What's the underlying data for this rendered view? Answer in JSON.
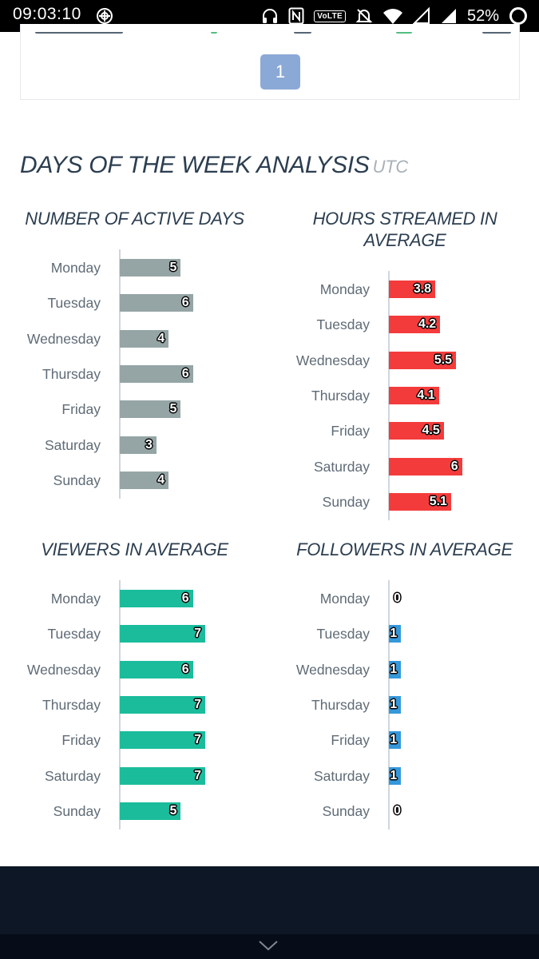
{
  "status_bar": {
    "time": "09:03:10",
    "volte": "VoLTE",
    "battery": "52%",
    "icons": [
      "compass-icon",
      "headset-icon",
      "nfc-icon",
      "volte-icon",
      "bell-off-icon",
      "wifi-icon",
      "signal-icon",
      "signal-icon",
      "battery-icon"
    ]
  },
  "pagination": {
    "current_page": "1"
  },
  "section": {
    "title": "DAYS OF THE WEEK ANALYSIS",
    "suffix": "UTC"
  },
  "colors": {
    "active_days": "#95a5a6",
    "hours": "#f43b3b",
    "viewers": "#1abc9c",
    "followers": "#3498db",
    "pagination": "#8ba9d6"
  },
  "chart_data": [
    {
      "type": "bar",
      "title": "NUMBER OF ACTIVE DAYS",
      "categories": [
        "Monday",
        "Tuesday",
        "Wednesday",
        "Thursday",
        "Friday",
        "Saturday",
        "Sunday"
      ],
      "values": [
        5,
        6,
        4,
        6,
        5,
        3,
        4
      ],
      "value_labels": [
        "5",
        "6",
        "4",
        "6",
        "5",
        "3",
        "4"
      ],
      "orientation": "horizontal"
    },
    {
      "type": "bar",
      "title": "HOURS STREAMED IN AVERAGE",
      "categories": [
        "Monday",
        "Tuesday",
        "Wednesday",
        "Thursday",
        "Friday",
        "Saturday",
        "Sunday"
      ],
      "values": [
        3.8,
        4.2,
        5.5,
        4.1,
        4.5,
        6,
        5.1
      ],
      "value_labels": [
        "3.8",
        "4.2",
        "5.5",
        "4.1",
        "4.5",
        "6",
        "5.1"
      ],
      "orientation": "horizontal"
    },
    {
      "type": "bar",
      "title": "VIEWERS IN AVERAGE",
      "categories": [
        "Monday",
        "Tuesday",
        "Wednesday",
        "Thursday",
        "Friday",
        "Saturday",
        "Sunday"
      ],
      "values": [
        6,
        7,
        6,
        7,
        7,
        7,
        5
      ],
      "value_labels": [
        "6",
        "7",
        "6",
        "7",
        "7",
        "7",
        "5"
      ],
      "orientation": "horizontal"
    },
    {
      "type": "bar",
      "title": "FOLLOWERS IN AVERAGE",
      "categories": [
        "Monday",
        "Tuesday",
        "Wednesday",
        "Thursday",
        "Friday",
        "Saturday",
        "Sunday"
      ],
      "values": [
        0,
        1,
        1,
        1,
        1,
        1,
        0
      ],
      "value_labels": [
        "0",
        "1",
        "1",
        "1",
        "1",
        "1",
        "0"
      ],
      "orientation": "horizontal"
    }
  ],
  "footer": {
    "icon": "chevron-down-icon"
  }
}
